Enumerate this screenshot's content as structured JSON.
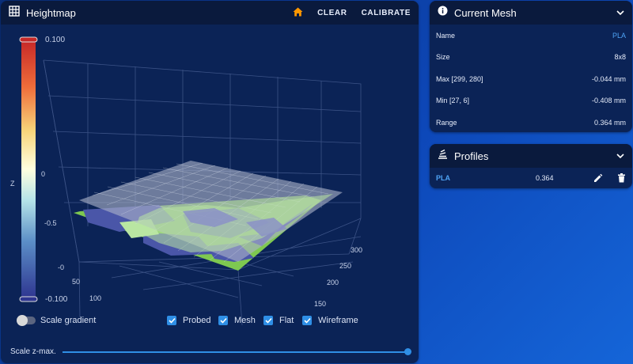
{
  "heightmap": {
    "title": "Heightmap",
    "icon": "grid-icon",
    "actions": {
      "home_icon": "home-icon",
      "clear": "CLEAR",
      "calibrate": "CALIBRATE"
    },
    "colorbar": {
      "max": "0.100",
      "min": "-0.100",
      "axis": "Z"
    },
    "z_ticks": [
      "0",
      "-0.5",
      "-0"
    ],
    "x_ticks": [
      "50",
      "100"
    ],
    "y_ticks": [
      "300",
      "250",
      "200",
      "150"
    ],
    "scale_gradient_label": "Scale gradient",
    "scale_gradient_on": false,
    "checkboxes": [
      {
        "label": "Probed",
        "checked": true
      },
      {
        "label": "Mesh",
        "checked": true
      },
      {
        "label": "Flat",
        "checked": true
      },
      {
        "label": "Wireframe",
        "checked": true
      }
    ],
    "scale_zmax_label": "Scale z-max.",
    "scale_zmax_value": 1.0,
    "colors": {
      "accent": "#2f8fe6",
      "mesh_green": "#7ec850",
      "mesh_blue": "#4a56a8",
      "flat": "#aab2c8",
      "home": "#ff9800"
    }
  },
  "current_mesh": {
    "title": "Current Mesh",
    "icon": "info-icon",
    "rows": [
      {
        "label": "Name",
        "value": "PLA",
        "accent": true
      },
      {
        "label": "Size",
        "value": "8x8",
        "accent": false
      },
      {
        "label": "Max [299, 280]",
        "value": "-0.044 mm",
        "accent": false
      },
      {
        "label": "Min [27, 6]",
        "value": "-0.408 mm",
        "accent": false
      },
      {
        "label": "Range",
        "value": "0.364 mm",
        "accent": false
      }
    ]
  },
  "profiles": {
    "title": "Profiles",
    "icon": "stack-icon",
    "items": [
      {
        "name": "PLA",
        "value": "0.364"
      }
    ]
  }
}
